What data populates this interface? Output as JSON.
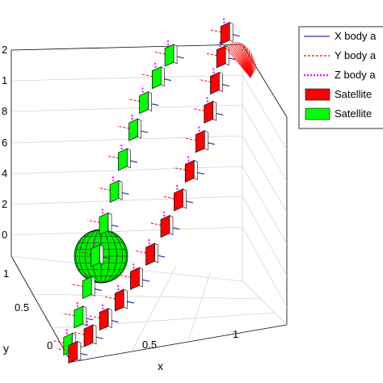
{
  "chart_data": {
    "type": "scatter",
    "title": "",
    "axes": {
      "x": {
        "label": "x",
        "ticks": [
          "0",
          "0.5",
          "1"
        ]
      },
      "y": {
        "label": "y",
        "ticks": [
          "0",
          "0.5",
          "1"
        ]
      },
      "z": {
        "ticks": [
          "0",
          "2",
          "4",
          "6",
          "8",
          "1",
          "2"
        ]
      }
    },
    "grid": true,
    "legend": {
      "placement": "top-right",
      "entries": [
        "X body a",
        "Y body a",
        "Z body a",
        "Satellite",
        "Satellite"
      ],
      "styles": [
        {
          "kind": "line",
          "color": "#3333aa",
          "dash": ""
        },
        {
          "kind": "line",
          "color": "#ff0000",
          "dash": "3,2"
        },
        {
          "kind": "line",
          "color": "#ff00ff",
          "dash": "2,2"
        },
        {
          "kind": "patch",
          "color": "#ff0000"
        },
        {
          "kind": "patch",
          "color": "#00ff00"
        }
      ]
    },
    "colors": {
      "x_axis_arrow": "#3333aa",
      "y_axis_arrow": "#ff0000",
      "z_axis_arrow": "#ff00ff",
      "satellite_red": "#ff0000",
      "satellite_green": "#00ff00",
      "earth": "#00ee00"
    },
    "trajectory": {
      "red_face": [
        [
          0.02,
          0.04,
          0.02
        ],
        [
          0.1,
          0.07,
          0.06
        ],
        [
          0.18,
          0.1,
          0.1
        ],
        [
          0.26,
          0.13,
          0.15
        ],
        [
          0.34,
          0.16,
          0.21
        ],
        [
          0.42,
          0.19,
          0.28
        ],
        [
          0.5,
          0.23,
          0.36
        ],
        [
          0.57,
          0.26,
          0.44
        ],
        [
          0.63,
          0.29,
          0.53
        ],
        [
          0.69,
          0.33,
          0.62
        ],
        [
          0.74,
          0.37,
          0.71
        ],
        [
          0.78,
          0.41,
          0.8
        ],
        [
          0.82,
          0.45,
          0.88
        ],
        [
          0.85,
          0.49,
          0.95
        ]
      ],
      "green_face": [
        [
          0.0,
          0.05,
          0.05
        ],
        [
          0.06,
          0.09,
          0.13
        ],
        [
          0.11,
          0.13,
          0.22
        ],
        [
          0.16,
          0.17,
          0.32
        ],
        [
          0.21,
          0.21,
          0.42
        ],
        [
          0.27,
          0.25,
          0.52
        ],
        [
          0.32,
          0.29,
          0.62
        ],
        [
          0.38,
          0.33,
          0.71
        ],
        [
          0.44,
          0.37,
          0.79
        ],
        [
          0.51,
          0.41,
          0.86
        ],
        [
          0.58,
          0.45,
          0.92
        ]
      ]
    },
    "earth": {
      "center": [
        0.3,
        0.3,
        0.12
      ],
      "label": ""
    }
  }
}
